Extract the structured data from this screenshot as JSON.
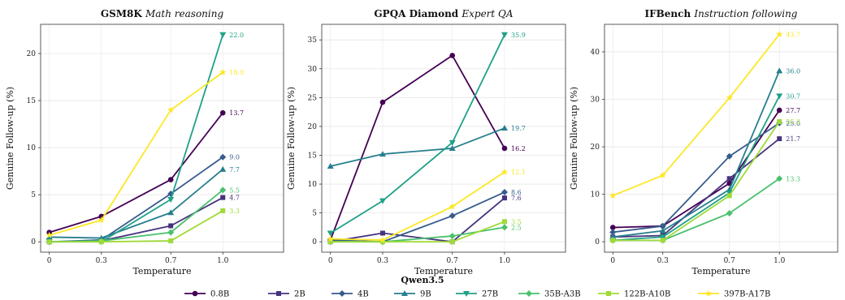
{
  "chart_data": {
    "type": "line",
    "legend": {
      "title": "Qwen3.5",
      "placement": "bottom-center",
      "entries": [
        {
          "name": "0.8B",
          "color": "#440154",
          "marker": "circle"
        },
        {
          "name": "2B",
          "color": "#46337e",
          "marker": "square"
        },
        {
          "name": "4B",
          "color": "#365c8d",
          "marker": "diamond"
        },
        {
          "name": "9B",
          "color": "#277f8e",
          "marker": "triangle-up"
        },
        {
          "name": "27B",
          "color": "#1fa187",
          "marker": "triangle-down"
        },
        {
          "name": "35B-A3B",
          "color": "#4ac16d",
          "marker": "diamond"
        },
        {
          "name": "122B-A10B",
          "color": "#a0da39",
          "marker": "square"
        },
        {
          "name": "397B-A17B",
          "color": "#fde725",
          "marker": "star"
        }
      ]
    },
    "panels": [
      {
        "title": "GSM8K",
        "subtitle": "Math reasoning",
        "xlabel": "Temperature",
        "ylabel": "Genuine Follow-up (%)",
        "x": [
          0,
          0.3,
          0.7,
          1.0
        ],
        "x_tick_labels": [
          "0",
          "0.3",
          "0.7",
          "1.0"
        ],
        "xlim": [
          -0.05,
          1.35
        ],
        "ylim": [
          -1.1,
          23.1
        ],
        "yticks": [
          0,
          5,
          10,
          15,
          20
        ],
        "grid": true,
        "series": [
          {
            "name": "0.8B",
            "values": [
              1.0,
              2.7,
              6.6,
              13.7
            ],
            "end_label": "13.7"
          },
          {
            "name": "2B",
            "values": [
              0.0,
              0.1,
              1.7,
              4.7
            ],
            "end_label": "4.7"
          },
          {
            "name": "4B",
            "values": [
              0.0,
              0.2,
              5.1,
              9.0
            ],
            "end_label": "9.0"
          },
          {
            "name": "9B",
            "values": [
              0.5,
              0.4,
              3.1,
              7.7
            ],
            "end_label": "7.7"
          },
          {
            "name": "27B",
            "values": [
              0.0,
              0.0,
              4.5,
              22.0
            ],
            "end_label": "22.0"
          },
          {
            "name": "35B-A3B",
            "values": [
              0.0,
              0.1,
              1.0,
              5.5
            ],
            "end_label": "5.5"
          },
          {
            "name": "122B-A10B",
            "values": [
              0.0,
              0.0,
              0.1,
              3.3
            ],
            "end_label": "3.3"
          },
          {
            "name": "397B-A17B",
            "values": [
              0.7,
              2.3,
              14.0,
              18.0
            ],
            "end_label": "18.0"
          }
        ]
      },
      {
        "title": "GPQA Diamond",
        "subtitle": "Expert QA",
        "xlabel": "Temperature",
        "ylabel": "Genuine Follow-up (%)",
        "x": [
          0,
          0.3,
          0.7,
          1.0
        ],
        "x_tick_labels": [
          "0",
          "0.3",
          "0.7",
          "1.0"
        ],
        "xlim": [
          -0.05,
          1.35
        ],
        "ylim": [
          -1.8,
          37.7
        ],
        "yticks": [
          0,
          5,
          10,
          15,
          20,
          25,
          30,
          35
        ],
        "grid": true,
        "series": [
          {
            "name": "0.8B",
            "values": [
              0.3,
              24.2,
              32.3,
              16.2
            ],
            "end_label": "16.2"
          },
          {
            "name": "2B",
            "values": [
              0.0,
              1.5,
              0.0,
              7.6
            ],
            "end_label": "7.6"
          },
          {
            "name": "4B",
            "values": [
              0.3,
              0.0,
              4.5,
              8.6
            ],
            "end_label": "8.6"
          },
          {
            "name": "9B",
            "values": [
              13.1,
              15.2,
              16.2,
              19.7
            ],
            "end_label": "19.7"
          },
          {
            "name": "27B",
            "values": [
              1.5,
              7.1,
              17.2,
              35.9
            ],
            "end_label": "35.9"
          },
          {
            "name": "35B-A3B",
            "values": [
              0.0,
              0.0,
              1.0,
              2.5
            ],
            "end_label": "2.5"
          },
          {
            "name": "122B-A10B",
            "values": [
              0.0,
              0.0,
              0.0,
              3.5
            ],
            "end_label": "3.5"
          },
          {
            "name": "397B-A17B",
            "values": [
              0.5,
              0.3,
              6.1,
              12.1
            ],
            "end_label": "12.1"
          }
        ]
      },
      {
        "title": "IFBench",
        "subtitle": "Instruction following",
        "xlabel": "Temperature",
        "ylabel": "Genuine Follow-up (%)",
        "x": [
          0,
          0.3,
          0.7,
          1.0
        ],
        "x_tick_labels": [
          "0",
          "0.3",
          "0.7",
          "1.0"
        ],
        "xlim": [
          -0.05,
          1.35
        ],
        "ylim": [
          -2.2,
          45.8
        ],
        "yticks": [
          0,
          10,
          20,
          30,
          40
        ],
        "grid": true,
        "series": [
          {
            "name": "0.8B",
            "values": [
              3.0,
              3.3,
              12.3,
              27.7
            ],
            "end_label": "27.7"
          },
          {
            "name": "2B",
            "values": [
              1.0,
              1.3,
              13.3,
              21.7
            ],
            "end_label": "21.7"
          },
          {
            "name": "4B",
            "values": [
              2.0,
              3.3,
              18.0,
              25.0
            ],
            "end_label": "25.0"
          },
          {
            "name": "9B",
            "values": [
              1.0,
              2.3,
              11.0,
              36.0
            ],
            "end_label": "36.0"
          },
          {
            "name": "27B",
            "values": [
              0.3,
              1.0,
              10.3,
              30.7
            ],
            "end_label": "30.7"
          },
          {
            "name": "35B-A3B",
            "values": [
              0.3,
              0.3,
              6.0,
              13.3
            ],
            "end_label": "13.3"
          },
          {
            "name": "122B-A10B",
            "values": [
              0.3,
              0.3,
              9.7,
              25.3
            ],
            "end_label": "25.3"
          },
          {
            "name": "397B-A17B",
            "values": [
              9.7,
              14.0,
              30.3,
              43.7
            ],
            "end_label": "43.7"
          }
        ]
      }
    ]
  }
}
